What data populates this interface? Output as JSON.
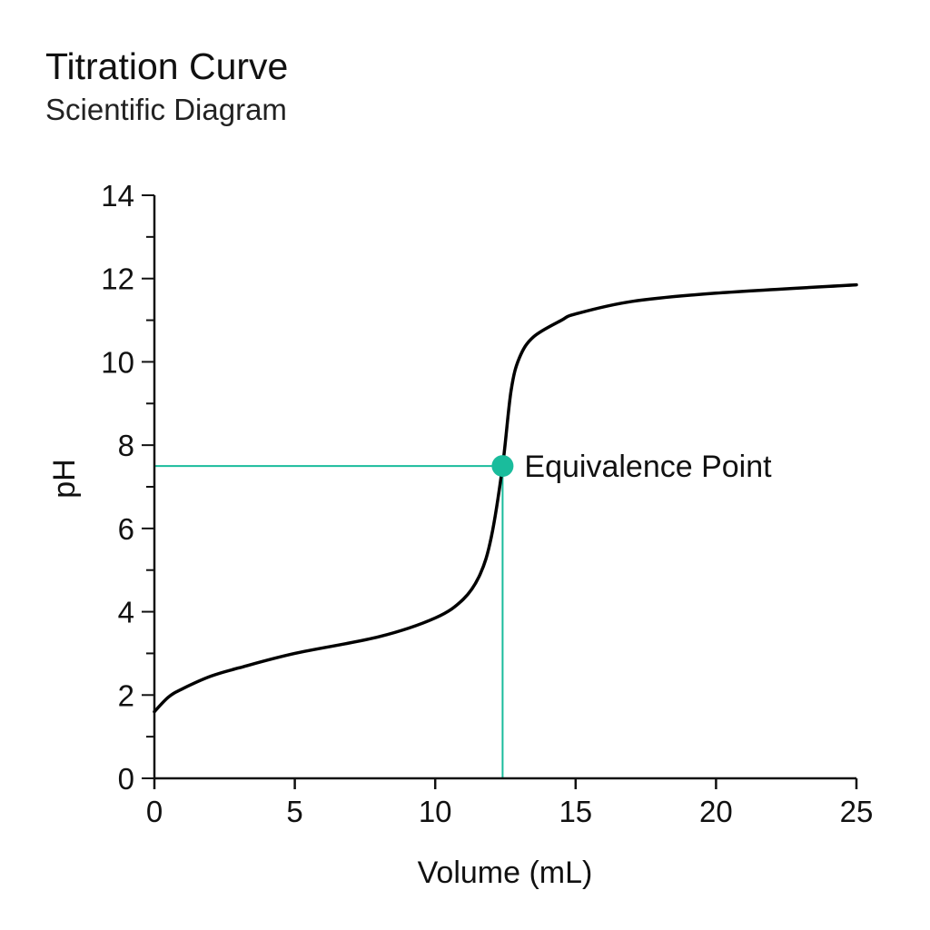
{
  "chart_data": {
    "type": "line",
    "title": "Titration Curve",
    "subtitle": "Scientific Diagram",
    "xlabel": "Volume (mL)",
    "ylabel": "pH",
    "xlim": [
      0,
      25
    ],
    "ylim": [
      0,
      14
    ],
    "xticks": [
      0,
      5,
      10,
      15,
      20,
      25
    ],
    "yticks": [
      0,
      2,
      4,
      6,
      8,
      10,
      12,
      14
    ],
    "y_minor_step": 1,
    "grid": false,
    "series": [
      {
        "color": "#000000",
        "x": [
          0,
          0.5,
          1,
          2,
          3,
          5,
          8,
          10,
          11,
          11.6,
          12,
          12.4,
          12.7,
          13,
          13.5,
          14.5,
          15,
          17,
          20,
          25
        ],
        "y": [
          1.6,
          1.95,
          2.15,
          2.45,
          2.65,
          3.0,
          3.4,
          3.85,
          4.3,
          4.9,
          5.8,
          7.5,
          9.3,
          10.1,
          10.6,
          11.0,
          11.15,
          11.45,
          11.65,
          11.85
        ]
      }
    ],
    "annotations": [
      {
        "label": "Equivalence Point",
        "x": 12.4,
        "y": 7.5,
        "color": "#1abc9c"
      }
    ]
  }
}
